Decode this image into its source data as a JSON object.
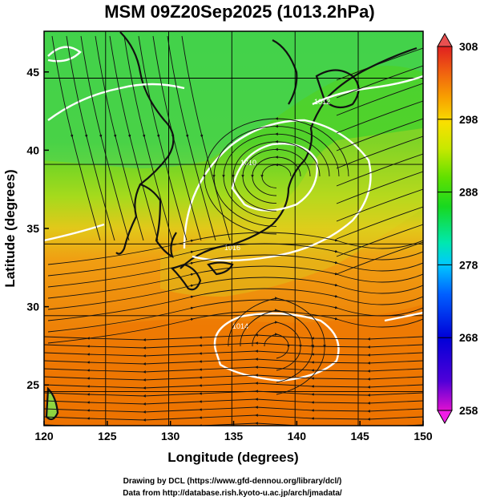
{
  "title": "MSM 09Z20Sep2025 (1013.2hPa)",
  "x_axis": {
    "label": "Longitude (degrees)",
    "range": [
      120,
      150
    ],
    "ticks": [
      "120",
      "125",
      "130",
      "135",
      "140",
      "145",
      "150"
    ]
  },
  "y_axis": {
    "label": "Latitude  (degrees)",
    "range": [
      22.4,
      47.6
    ],
    "ticks": [
      "25",
      "30",
      "35",
      "40",
      "45"
    ]
  },
  "colorbar": {
    "ticks": [
      "308",
      "298",
      "288",
      "278",
      "268",
      "258"
    ],
    "range": [
      258,
      308
    ],
    "colors": [
      "#e010d0",
      "#5000d8",
      "#0000d8",
      "#0060ff",
      "#00c8ff",
      "#00e8b0",
      "#18d820",
      "#60e000",
      "#c8e800",
      "#f8e000",
      "#f8a000",
      "#f06010",
      "#e02020"
    ]
  },
  "field_colors": {
    "warm": "#ee7400",
    "orange": "#f39a10",
    "yellow": "#e2d41c",
    "green": "#42d028",
    "cool_green": "#2ed06a",
    "contour": "#ffffff",
    "streamline": "#111111"
  },
  "credits": {
    "line1": "Drawing by DCL (https://www.gfd-dennou.org/library/dcl/)",
    "line2": "Data from http://database.rish.kyoto-u.ac.jp/arch/jmadata/"
  }
}
